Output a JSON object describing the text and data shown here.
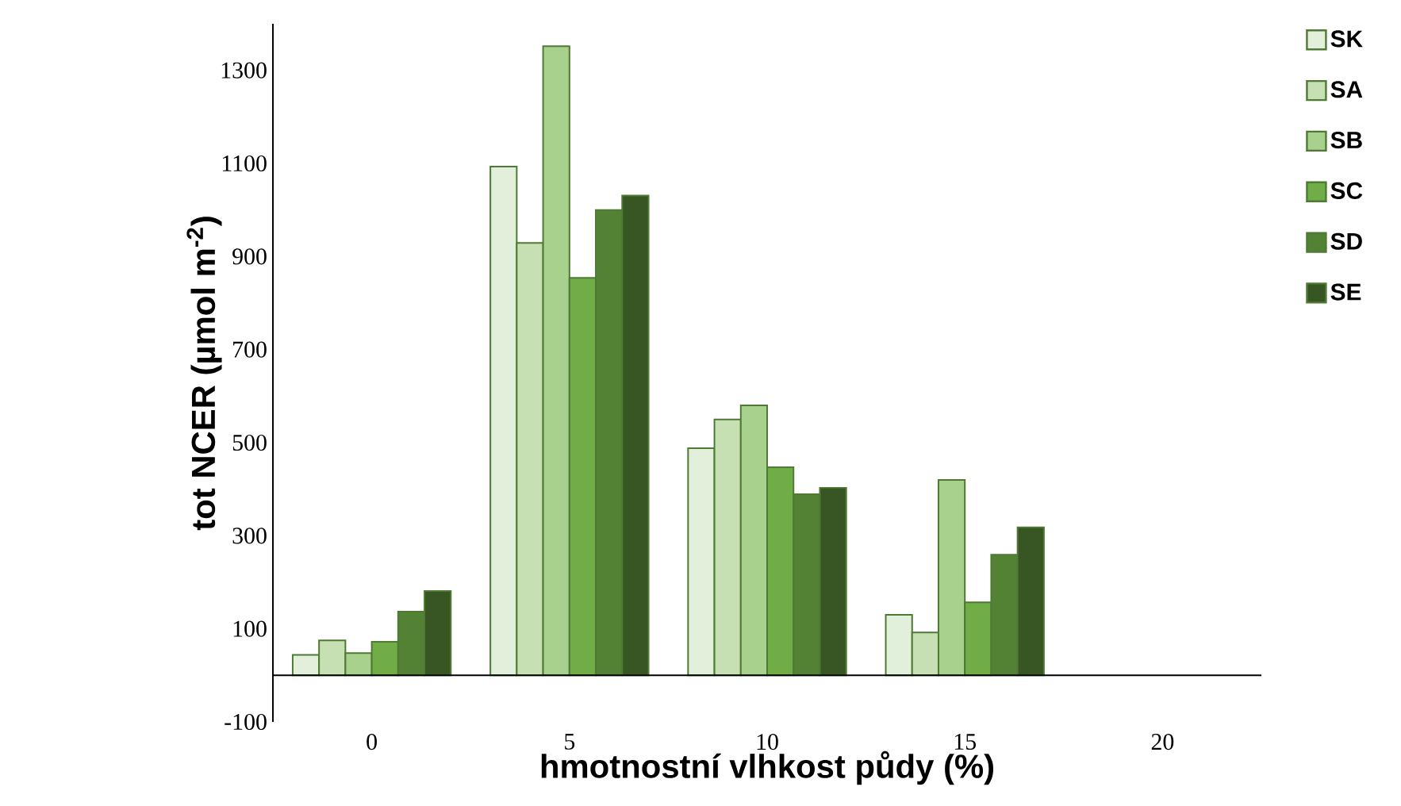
{
  "chart_data": {
    "type": "bar",
    "xlabel": "hmotnostní vlhkost půdy (%)",
    "ylabel": "tot NCER (µmol m$^{-2}$)",
    "categories": [
      "0",
      "5",
      "10",
      "15",
      "20"
    ],
    "series": [
      {
        "name": "SK",
        "color": "#e2efda",
        "values": [
          44,
          1093,
          488,
          130,
          0
        ]
      },
      {
        "name": "SA",
        "color": "#c6e0b4",
        "values": [
          75,
          929,
          550,
          92,
          0
        ]
      },
      {
        "name": "SB",
        "color": "#a9d18e",
        "values": [
          48,
          1352,
          580,
          420,
          0
        ]
      },
      {
        "name": "SC",
        "color": "#70ad47",
        "values": [
          72,
          854,
          447,
          157,
          0
        ]
      },
      {
        "name": "SD",
        "color": "#548235",
        "values": [
          137,
          1000,
          389,
          259,
          0
        ]
      },
      {
        "name": "SE",
        "color": "#375623",
        "values": [
          181,
          1031,
          403,
          318,
          0
        ]
      }
    ],
    "ylim": [
      -100,
      1400
    ],
    "yticks": [
      -100,
      100,
      300,
      500,
      700,
      900,
      1100,
      1300
    ],
    "grid": false,
    "legend": "right"
  }
}
